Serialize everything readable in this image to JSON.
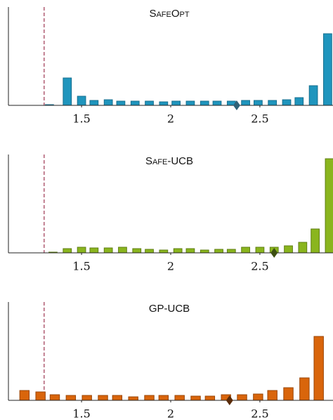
{
  "chart_data": [
    {
      "type": "bar",
      "title": "SafeOpt",
      "color": "#1f95bd",
      "edge": "#176f8f",
      "marker_color": "#2f6278",
      "x": [
        1.32,
        1.42,
        1.5,
        1.57,
        1.65,
        1.72,
        1.8,
        1.88,
        1.96,
        2.03,
        2.11,
        2.19,
        2.26,
        2.34,
        2.42,
        2.49,
        2.57,
        2.65,
        2.72,
        2.8,
        2.88
      ],
      "values": [
        1,
        39,
        13,
        7,
        8,
        6,
        6,
        6,
        5,
        6,
        6,
        6,
        6,
        6,
        7,
        7,
        7,
        8,
        11,
        28,
        102
      ],
      "xlim": [
        1.09,
        2.91
      ],
      "ylim": [
        0,
        140
      ],
      "xticks": [
        1.5,
        2,
        2.5
      ],
      "threshold": 1.29,
      "marker": 2.37
    },
    {
      "type": "bar",
      "title": "Safe-UCB",
      "color": "#8ab51e",
      "edge": "#5e7e12",
      "marker_color": "#3d4f12",
      "x": [
        1.34,
        1.42,
        1.5,
        1.57,
        1.65,
        1.73,
        1.81,
        1.88,
        1.96,
        2.04,
        2.11,
        2.19,
        2.27,
        2.34,
        2.42,
        2.5,
        2.58,
        2.66,
        2.74,
        2.81,
        2.89
      ],
      "values": [
        1,
        6,
        8,
        7,
        7,
        8,
        6,
        5,
        4,
        6,
        6,
        4,
        5,
        5,
        8,
        8,
        8,
        10,
        15,
        34,
        134
      ],
      "xlim": [
        1.09,
        2.91
      ],
      "ylim": [
        0,
        140
      ],
      "xticks": [
        1.5,
        2,
        2.5
      ],
      "threshold": 1.29,
      "marker": 2.58
    },
    {
      "type": "bar",
      "title": "GP-UCB",
      "color": "#d9650b",
      "edge": "#9a4505",
      "marker_color": "#5a2c0a",
      "x": [
        1.18,
        1.27,
        1.35,
        1.44,
        1.53,
        1.62,
        1.7,
        1.79,
        1.88,
        1.96,
        2.05,
        2.14,
        2.22,
        2.31,
        2.4,
        2.49,
        2.57,
        2.66,
        2.75,
        2.83
      ],
      "values": [
        14,
        12,
        8,
        7,
        7,
        7,
        7,
        5,
        7,
        7,
        7,
        6,
        6,
        8,
        8,
        9,
        14,
        18,
        32,
        91
      ],
      "xlim": [
        1.09,
        2.91
      ],
      "ylim": [
        0,
        140
      ],
      "xticks": [
        1.5,
        2,
        2.5
      ],
      "threshold": 1.29,
      "marker": 2.33
    }
  ]
}
